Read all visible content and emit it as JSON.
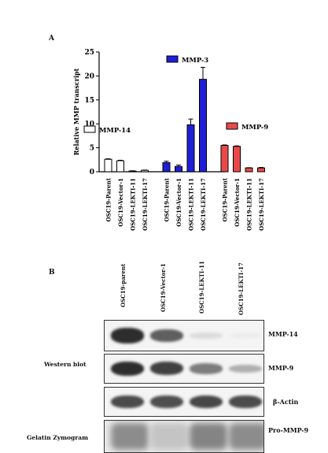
{
  "panel_a": {
    "letter": "A",
    "chart_data": {
      "type": "bar",
      "ylabel": "Relative MMP transcript",
      "ylim": [
        0,
        25
      ],
      "yticks": [
        0,
        5,
        10,
        15,
        20,
        25
      ],
      "groups": [
        {
          "name": "MMP-14",
          "color": "#ffffff",
          "categories": [
            "OSC19-Parent",
            "OSC19-Vector-1",
            "OSC19-LEKTI-11",
            "OSC19-LEKTI-17"
          ],
          "values": [
            2.6,
            2.3,
            0.15,
            0.3
          ],
          "errors": [
            0.1,
            0.1,
            0.05,
            0.05
          ]
        },
        {
          "name": "MMP-3",
          "color": "#1f1fd6",
          "categories": [
            "OSC19-Parent",
            "OSC19-Vector-1",
            "OSC19-LEKTI-11",
            "OSC19-LEKTI-17"
          ],
          "values": [
            1.9,
            1.1,
            9.8,
            19.3
          ],
          "errors": [
            0.3,
            0.3,
            1.2,
            2.5
          ]
        },
        {
          "name": "MMP-9",
          "color": "#e84a4a",
          "categories": [
            "OSC19-Parent",
            "OSC19-Vector-1",
            "OSC19-LEKTI-11",
            "OSC19-LEKTI-17"
          ],
          "values": [
            5.5,
            5.3,
            0.8,
            0.8
          ],
          "errors": [
            0.1,
            0.1,
            0.05,
            0.1
          ]
        }
      ]
    }
  },
  "panel_b": {
    "letter": "B",
    "lanes": [
      "OSC19-parent",
      "OSC19-Vector-1",
      "OSC19-LEKTI-11",
      "OSC19-LEKTI-17"
    ],
    "side_labels": {
      "western": "Western blot",
      "zymogram": "Gelatin Zymogram"
    },
    "blots": [
      {
        "label": "MMP-14",
        "intensities": [
          0.95,
          0.7,
          0.08,
          0.0
        ]
      },
      {
        "label": "MMP-9",
        "intensities": [
          0.95,
          0.85,
          0.55,
          0.3
        ]
      },
      {
        "label": "β-Actin",
        "intensities": [
          0.8,
          0.78,
          0.82,
          0.8
        ]
      },
      {
        "label": "Pro-MMP-9",
        "intensities": [
          0.5,
          0.15,
          0.55,
          0.5
        ]
      }
    ]
  }
}
